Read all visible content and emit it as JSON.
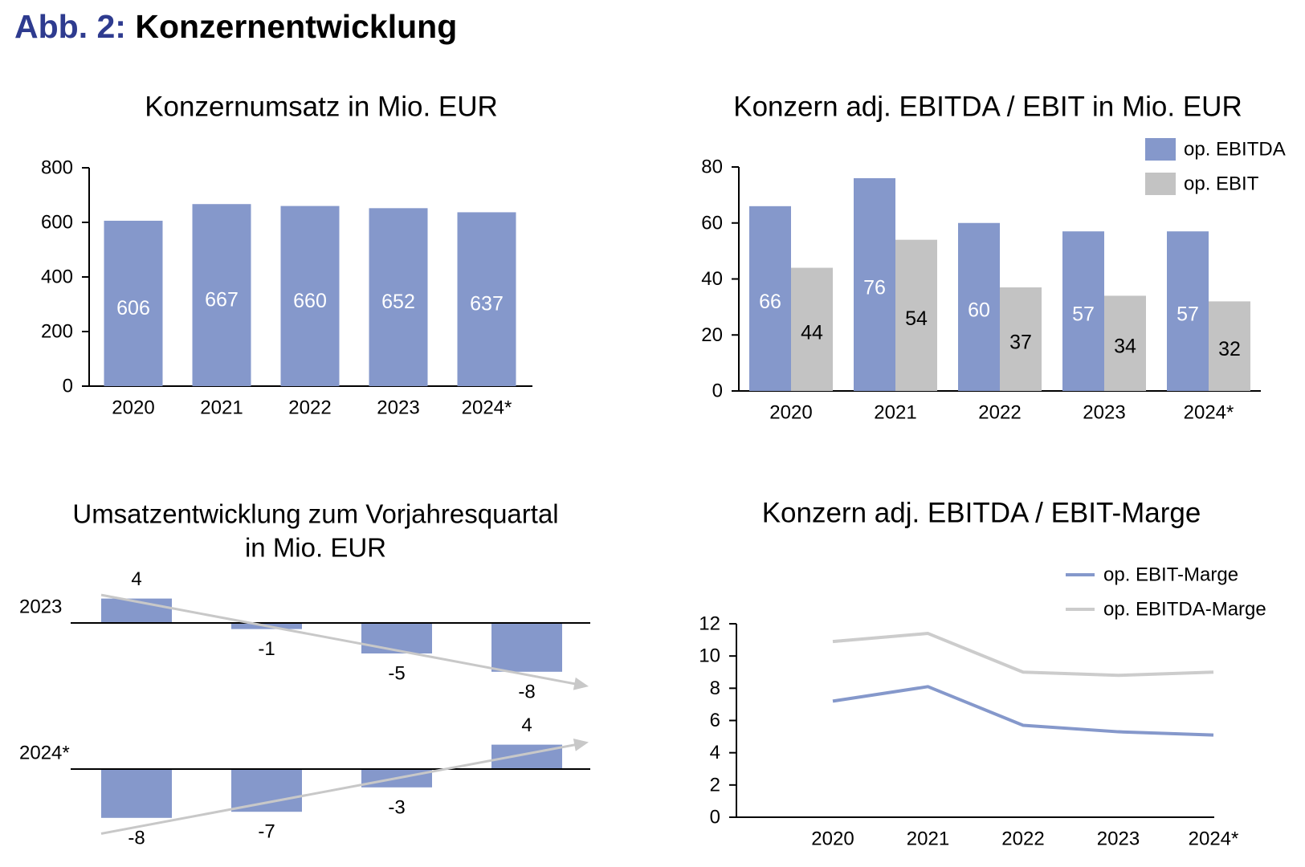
{
  "figure": {
    "prefix": "Abb. 2:",
    "title": "Konzernentwicklung"
  },
  "colors": {
    "ebitda": "#8598cb",
    "ebit": "#c3c3c3",
    "prefix": "#2e3b8f",
    "axis": "#000000"
  },
  "chart_data": [
    {
      "id": "revenue",
      "type": "bar",
      "title": "Konzernumsatz in Mio. EUR",
      "categories": [
        "2020",
        "2021",
        "2022",
        "2023",
        "2024*"
      ],
      "values": [
        606,
        667,
        660,
        652,
        637
      ],
      "ylim": [
        0,
        800
      ],
      "yticks": [
        "0",
        "200",
        "400",
        "600",
        "800"
      ],
      "data_labels": [
        "606",
        "667",
        "660",
        "652",
        "637"
      ],
      "grid": false
    },
    {
      "id": "ebitda-ebit",
      "type": "bar",
      "title": "Konzern adj. EBITDA / EBIT in Mio. EUR",
      "categories": [
        "2020",
        "2021",
        "2022",
        "2023",
        "2024*"
      ],
      "series": [
        {
          "name": "op. EBITDA",
          "values": [
            66,
            76,
            60,
            57,
            57
          ],
          "labels": [
            "66",
            "76",
            "60",
            "57",
            "57"
          ]
        },
        {
          "name": "op. EBIT",
          "values": [
            44,
            54,
            37,
            34,
            32
          ],
          "labels": [
            "44",
            "54",
            "37",
            "34",
            "32"
          ]
        }
      ],
      "ylim": [
        0,
        80
      ],
      "yticks": [
        "0",
        "20",
        "40",
        "60",
        "80"
      ],
      "legend": "top-right",
      "grid": false
    },
    {
      "id": "quarterly",
      "type": "bar",
      "title": [
        "Umsatzentwicklung zum Vorjahresquartal",
        "in Mio. EUR"
      ],
      "rows": [
        {
          "label": "2023",
          "values": [
            4,
            -1,
            -5,
            -8
          ],
          "labels": [
            "4",
            "-1",
            "-5",
            "-8"
          ]
        },
        {
          "label": "2024*",
          "values": [
            -8,
            -7,
            -3,
            4
          ],
          "labels": [
            "-8",
            "-7",
            "-3",
            "4"
          ]
        }
      ],
      "trend": "arrow",
      "grid": false
    },
    {
      "id": "margin",
      "type": "line",
      "title": "Konzern adj. EBITDA / EBIT-Marge",
      "x": [
        "2020",
        "2021",
        "2022",
        "2023",
        "2024*"
      ],
      "series": [
        {
          "name": "op. EBIT-Marge",
          "values": [
            7.2,
            8.1,
            5.7,
            5.3,
            5.1
          ]
        },
        {
          "name": "op. EBITDA-Marge",
          "values": [
            10.9,
            11.4,
            9.0,
            8.8,
            9.0
          ]
        }
      ],
      "ylim": [
        0,
        12
      ],
      "yticks": [
        "0",
        "2",
        "4",
        "6",
        "8",
        "10",
        "12"
      ],
      "legend": "top-right",
      "grid": false
    }
  ]
}
